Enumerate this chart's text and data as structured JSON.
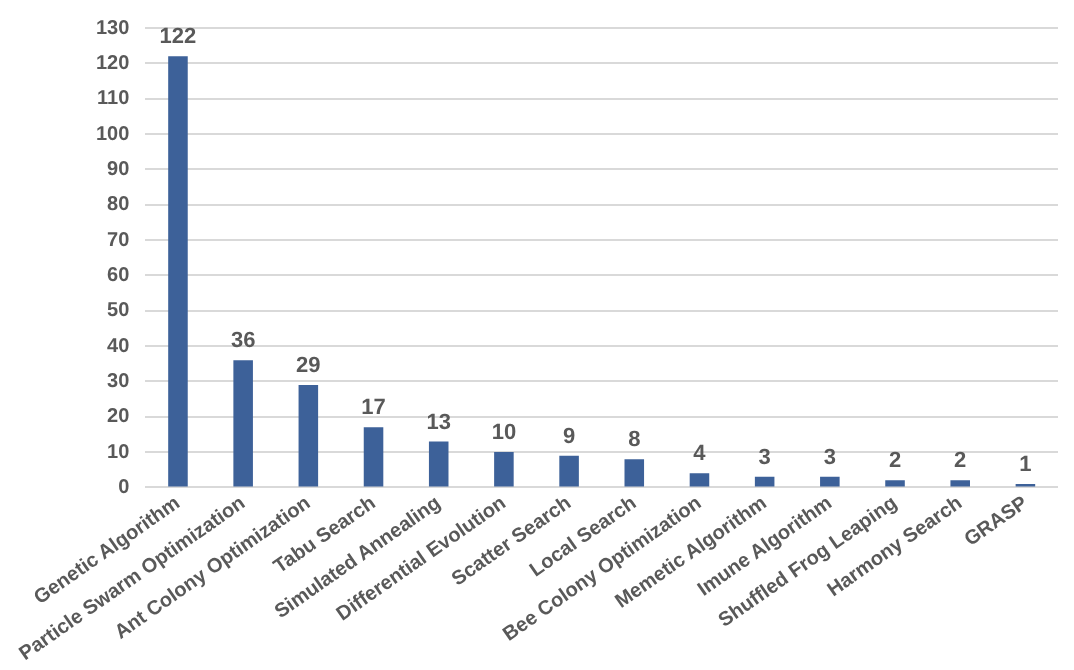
{
  "chart_data": {
    "type": "bar",
    "categories": [
      "Genetic Algorithm",
      "Particle Swarm Optimization",
      "Ant Colony Optimization",
      "Tabu Search",
      "Simulated Annealing",
      "Differential Evolution",
      "Scatter Search",
      "Local Search",
      "Bee Colony Optimization",
      "Memetic Algorithm",
      "Imune Algorithm",
      "Shuffled Frog Leaping",
      "Harmony Search",
      "GRASP"
    ],
    "values": [
      122,
      36,
      29,
      17,
      13,
      10,
      9,
      8,
      4,
      3,
      3,
      2,
      2,
      1
    ],
    "color": "#3d6199",
    "ylim": [
      0,
      130
    ],
    "yticks": [
      0,
      10,
      20,
      30,
      40,
      50,
      60,
      70,
      80,
      90,
      100,
      110,
      120,
      130
    ],
    "grid": "y",
    "data_labels": true,
    "legend": false
  }
}
